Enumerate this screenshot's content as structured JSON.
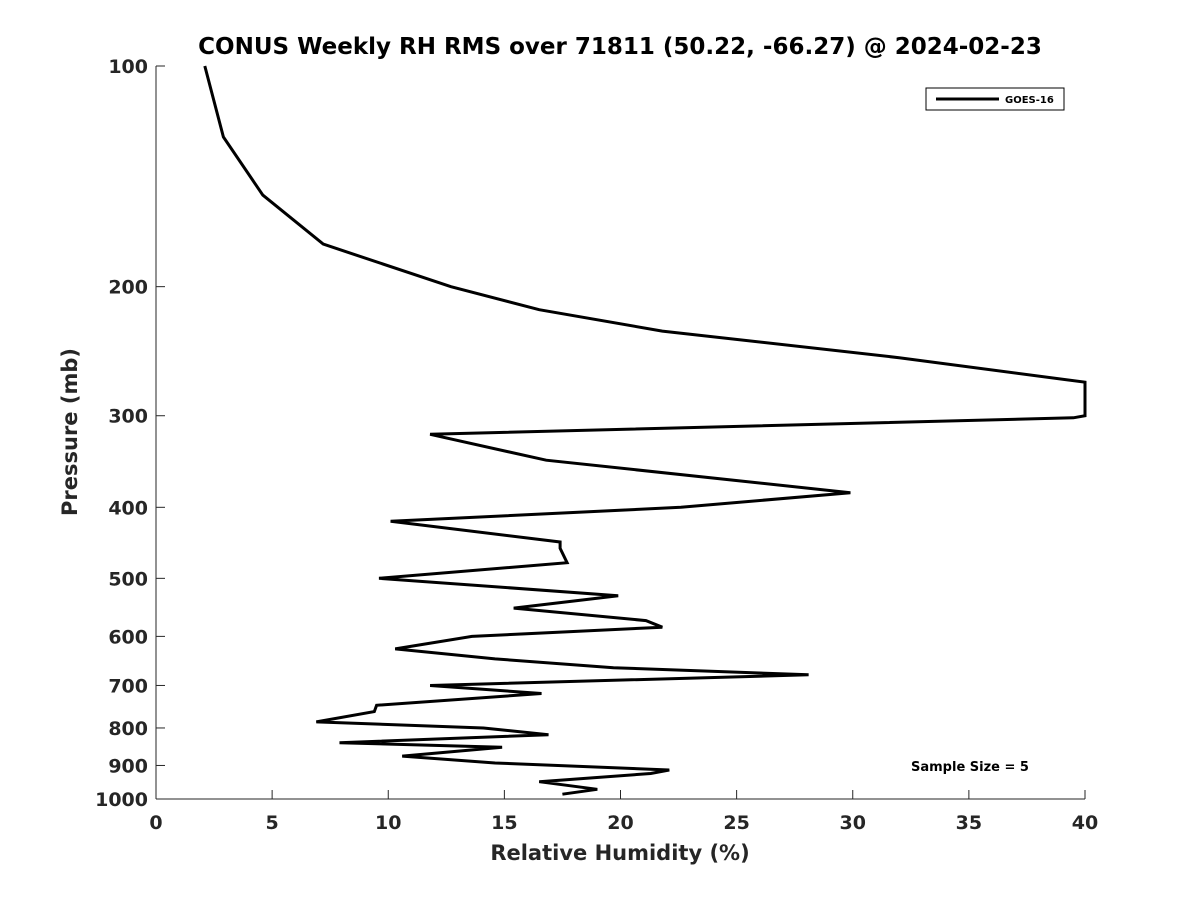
{
  "chart_data": {
    "type": "line",
    "title": "CONUS Weekly RH RMS over 71811 (50.22, -66.27) @ 2024-02-23",
    "xlabel": "Relative Humidity (%)",
    "ylabel": "Pressure (mb)",
    "xlim": [
      0,
      40
    ],
    "ylim": [
      100,
      1000
    ],
    "y_scale": "log",
    "y_reversed": true,
    "x_ticks": [
      "0",
      "5",
      "10",
      "15",
      "20",
      "25",
      "30",
      "35",
      "40"
    ],
    "y_ticks": [
      "100",
      "200",
      "300",
      "400",
      "500",
      "600",
      "700",
      "800",
      "900",
      "1000"
    ],
    "grid": false,
    "legend_position": "top-right",
    "annotation": "Sample Size = 5",
    "series": [
      {
        "name": "GOES-16",
        "color": "#000000",
        "points": [
          [
            2.1,
            100
          ],
          [
            2.9,
            125
          ],
          [
            4.6,
            150
          ],
          [
            7.2,
            175
          ],
          [
            12.7,
            200
          ],
          [
            16.5,
            215
          ],
          [
            21.8,
            230
          ],
          [
            32.0,
            250
          ],
          [
            40.0,
            270
          ],
          [
            40.0,
            300
          ],
          [
            39.5,
            302
          ],
          [
            11.8,
            318
          ],
          [
            16.8,
            345
          ],
          [
            29.9,
            382
          ],
          [
            22.6,
            400
          ],
          [
            10.1,
            418
          ],
          [
            17.4,
            446
          ],
          [
            17.4,
            455
          ],
          [
            17.7,
            476
          ],
          [
            9.6,
            500
          ],
          [
            19.9,
            528
          ],
          [
            15.4,
            549
          ],
          [
            21.1,
            571
          ],
          [
            21.8,
            583
          ],
          [
            13.6,
            600
          ],
          [
            10.3,
            624
          ],
          [
            14.6,
            644
          ],
          [
            19.7,
            662
          ],
          [
            28.1,
            677
          ],
          [
            11.8,
            700
          ],
          [
            16.6,
            718
          ],
          [
            9.5,
            745
          ],
          [
            9.4,
            760
          ],
          [
            6.9,
            785
          ],
          [
            14.1,
            800
          ],
          [
            16.9,
            817
          ],
          [
            7.9,
            838
          ],
          [
            14.9,
            850
          ],
          [
            10.6,
            874
          ],
          [
            14.6,
            893
          ],
          [
            22.1,
            913
          ],
          [
            21.3,
            923
          ],
          [
            16.5,
            947
          ],
          [
            19.0,
            970
          ],
          [
            17.5,
            985
          ]
        ]
      }
    ]
  }
}
